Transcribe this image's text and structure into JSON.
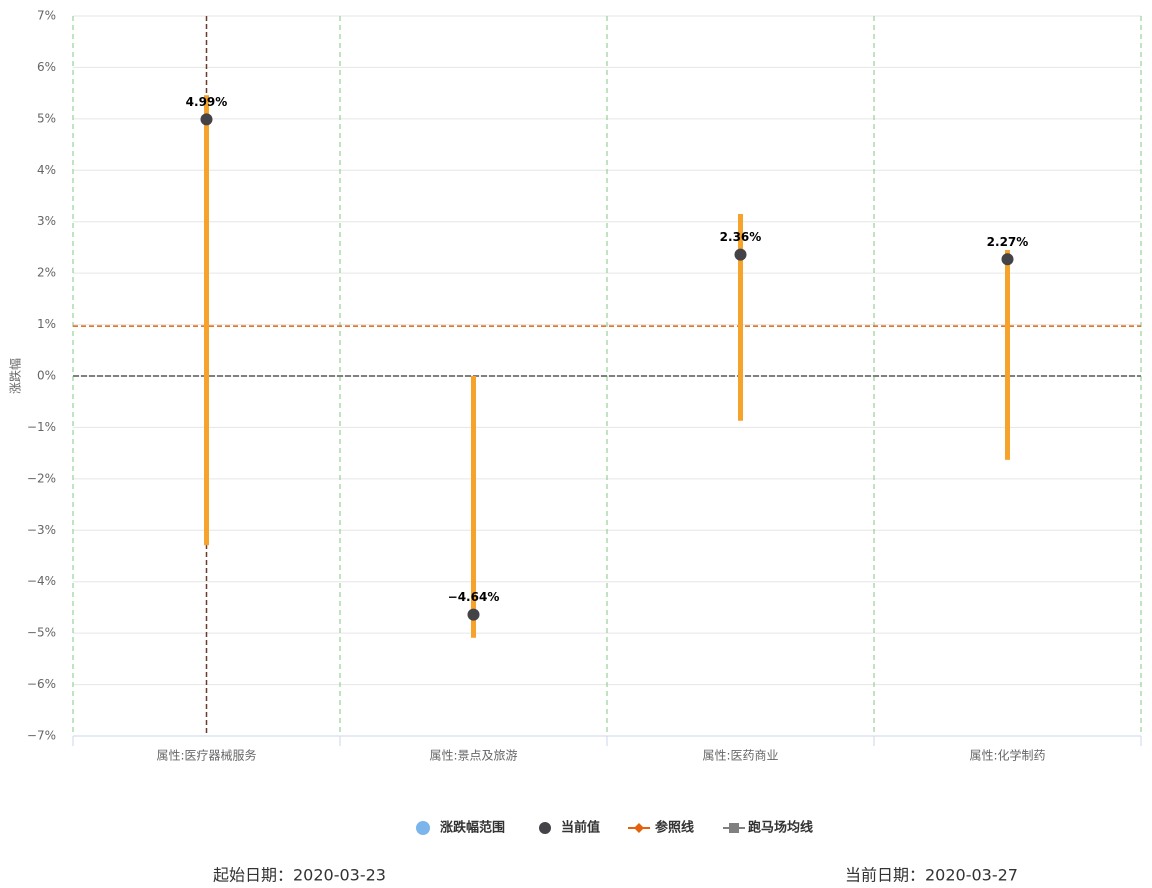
{
  "chart_data": {
    "type": "range_dot",
    "y_label": "涨跌幅",
    "categories": [
      "属性:医疗器械服务",
      "属性:景点及旅游",
      "属性:医药商业",
      "属性:化学制药"
    ],
    "range": {
      "name": "涨跌幅范围",
      "color": "#f5a32a",
      "legend_color": "#7cb5ec",
      "low": [
        -3.29,
        -5.09,
        -0.87,
        -1.63
      ],
      "high": [
        5.46,
        0,
        3.15,
        2.45
      ]
    },
    "current": {
      "name": "当前值",
      "color": "#434348",
      "values": [
        4.99,
        -4.64,
        2.36,
        2.27
      ],
      "value_labels": [
        "4.99%",
        "−4.64%",
        "2.36%",
        "2.27%"
      ]
    },
    "reference": {
      "name": "参照线",
      "color": "#e4620c",
      "value": 0.97
    },
    "average": {
      "name": "跑马场均线",
      "color": "#808080",
      "value": 0
    },
    "ylim": [
      -7,
      7
    ],
    "yticks": [
      {
        "value": -7,
        "label": "−7%"
      },
      {
        "value": -6,
        "label": "−6%"
      },
      {
        "value": -5,
        "label": "−5%"
      },
      {
        "value": -4,
        "label": "−4%"
      },
      {
        "value": -3,
        "label": "−3%"
      },
      {
        "value": -2,
        "label": "−2%"
      },
      {
        "value": -1,
        "label": "−1%"
      },
      {
        "value": 0,
        "label": "0%"
      },
      {
        "value": 1,
        "label": "1%"
      },
      {
        "value": 2,
        "label": "2%"
      },
      {
        "value": 3,
        "label": "3%"
      },
      {
        "value": 4,
        "label": "4%"
      },
      {
        "value": 5,
        "label": "5%"
      },
      {
        "value": 6,
        "label": "6%"
      },
      {
        "value": 7,
        "label": "7%"
      }
    ],
    "grid": true,
    "footer": {
      "start": "起始日期：2020-03-23",
      "current": "当前日期：2020-03-27"
    }
  }
}
